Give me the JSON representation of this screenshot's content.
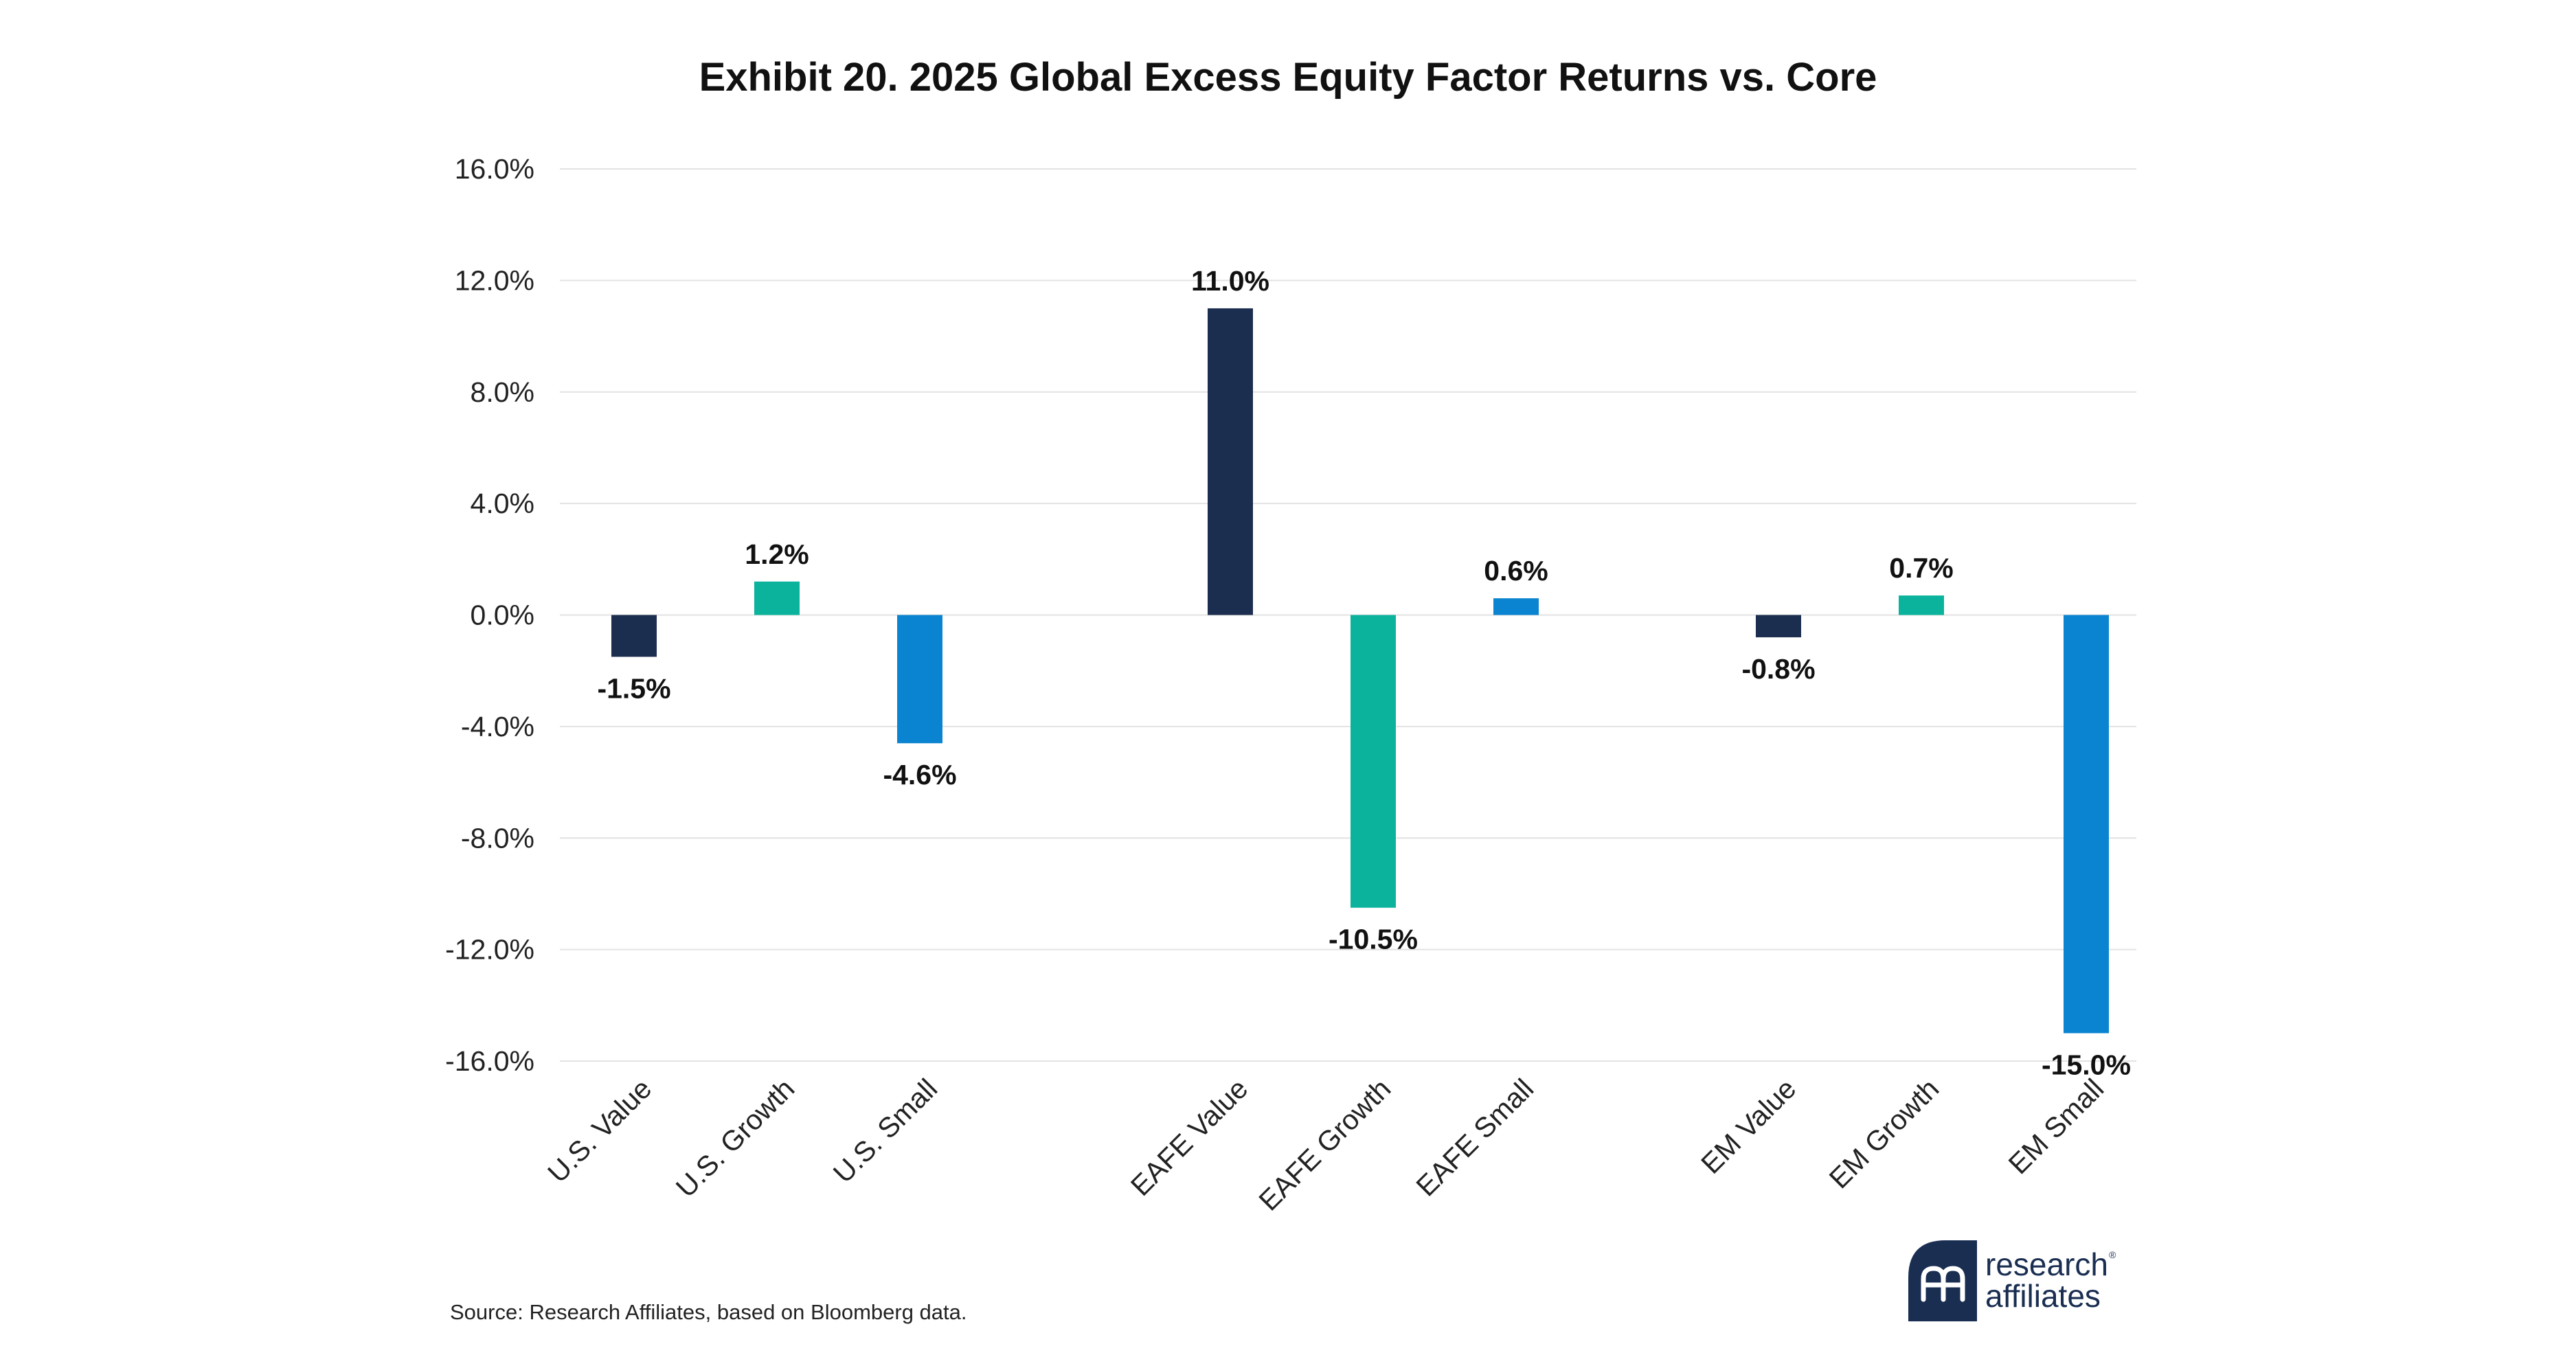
{
  "chart_data": {
    "type": "bar",
    "title": "Exhibit 20. 2025 Global Excess Equity Factor Returns vs. Core",
    "xlabel": "",
    "ylabel": "",
    "ylim": [
      -16,
      16
    ],
    "yticks": [
      "16.0%",
      "12.0%",
      "8.0%",
      "4.0%",
      "0.0%",
      "-4.0%",
      "-8.0%",
      "-12.0%",
      "-16.0%"
    ],
    "ytick_values": [
      16,
      12,
      8,
      4,
      0,
      -4,
      -8,
      -12,
      -16
    ],
    "grid": true,
    "legend": "none",
    "categories": [
      "U.S. Value",
      "U.S. Growth",
      "U.S. Small",
      "EAFE Value",
      "EAFE Growth",
      "EAFE Small",
      "EM Value",
      "EM Growth",
      "EM Small"
    ],
    "values": [
      -1.5,
      1.2,
      -4.6,
      11.0,
      -10.5,
      0.6,
      -0.8,
      0.7,
      -15.0
    ],
    "data_labels": [
      "-1.5%",
      "1.2%",
      "-4.6%",
      "11.0%",
      "-10.5%",
      "0.6%",
      "-0.8%",
      "0.7%",
      "-15.0%"
    ],
    "groups": [
      "U.S.",
      "EAFE",
      "EM"
    ],
    "colors": {
      "value": "#1b2e4f",
      "growth": "#0bb39c",
      "small": "#0a84d0",
      "grid": "#e2e2e2"
    },
    "bar_color_keys": [
      "value",
      "growth",
      "small",
      "value",
      "growth",
      "small",
      "value",
      "growth",
      "small"
    ]
  },
  "footer": {
    "source": "Source: Research Affiliates, based on Bloomberg data."
  },
  "logo": {
    "line1": "research",
    "line2": "affiliates",
    "mark": "®",
    "icon": "research-affiliates-logo-icon",
    "color": "#1a2e52"
  }
}
